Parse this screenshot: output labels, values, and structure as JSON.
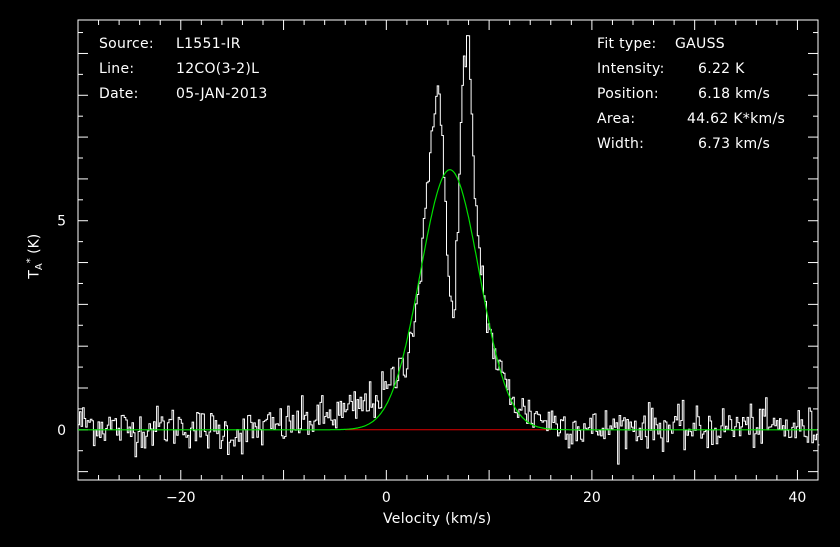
{
  "chart_data": {
    "type": "line",
    "xlabel": "Velocity (km/s)",
    "ylabel": {
      "symbol": "T",
      "subscript": "A",
      "superscript": "*",
      "unit": "(K)"
    },
    "xlim": [
      -30,
      42
    ],
    "ylim": [
      -1.2,
      9.8
    ],
    "xticks": [
      -20,
      0,
      20,
      40
    ],
    "yticks": [
      0,
      5
    ],
    "xtick_labels": [
      "−20",
      "0",
      "20",
      "40"
    ],
    "ytick_labels": [
      "0",
      "5"
    ],
    "grid": false,
    "colors": {
      "background": "#000000",
      "spectrum": "#ffffff",
      "fit": "#00e000",
      "baseline": "#e00000",
      "axes": "#ffffff"
    },
    "series": [
      {
        "role": "spectrum",
        "x": [
          -30,
          -25,
          -20,
          -15,
          -10,
          -8,
          -6,
          -4,
          -2,
          0,
          1,
          2,
          3,
          4,
          4.5,
          5,
          5.5,
          6,
          6.5,
          7,
          7.5,
          8,
          8.5,
          9,
          10,
          11,
          12,
          13,
          14,
          16,
          18,
          20,
          25,
          30,
          35,
          42
        ],
        "y": [
          0.2,
          0.0,
          0.1,
          -0.1,
          0.1,
          0.2,
          0.3,
          0.4,
          0.6,
          0.9,
          1.3,
          1.8,
          3.0,
          5.5,
          7.5,
          8.4,
          6.8,
          3.8,
          2.5,
          5.2,
          8.6,
          9.2,
          6.3,
          4.4,
          2.4,
          1.4,
          0.9,
          0.5,
          0.4,
          0.2,
          0.1,
          0.0,
          0.1,
          0.0,
          0.1,
          0.0
        ],
        "noise_sigma": 0.25
      },
      {
        "role": "gaussian-fit",
        "model": "gauss",
        "amplitude": 6.22,
        "center": 6.18,
        "fwhm": 6.73
      },
      {
        "role": "baseline",
        "x": [
          -4,
          16
        ],
        "y": [
          0,
          0
        ]
      }
    ]
  },
  "source": {
    "label": "Source:",
    "value": "L1551-IR"
  },
  "line": {
    "label": "Line:",
    "value": "12CO(3-2)L"
  },
  "date": {
    "label": "Date:",
    "value": "05-JAN-2013"
  },
  "fit": {
    "type_label": "Fit type:",
    "type_value": "GAUSS",
    "intensity_label": "Intensity:",
    "intensity_value": "6.22 K",
    "position_label": "Position:",
    "position_value": "6.18 km/s",
    "area_label": "Area:",
    "area_value": "44.62 K*km/s",
    "width_label": "Width:",
    "width_value": "6.73 km/s"
  }
}
